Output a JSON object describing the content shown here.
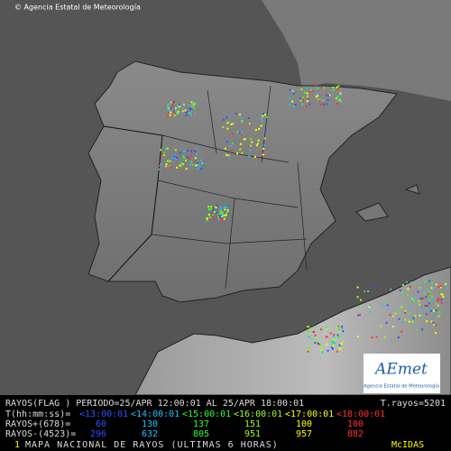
{
  "header": {
    "copyright": "© Agencia Estatal de Meteorología"
  },
  "logo": {
    "name": "AEmet",
    "subtitle": "Agencia Estatal de Meteorología"
  },
  "legend": {
    "period": "RAYOS(FLAG ) PERIODO=25/APR 12:00:01 AL 25/APR 18:00:01",
    "total": "T.rayos=5201",
    "time_label": "T(hh:mm:ss)=",
    "times": [
      "<13:00:01",
      "<14:00:01",
      "<15:00:01",
      "<16:00:01",
      "<17:00:01",
      "<18:00:01"
    ],
    "positive_label": "RAYOS+(678)=",
    "positive": [
      60,
      130,
      137,
      151,
      100,
      100
    ],
    "negative_label": "RAYOS-(4523)=",
    "negative": [
      296,
      632,
      805,
      951,
      957,
      882
    ]
  },
  "footer": {
    "index": "1",
    "title": "MAPA NACIONAL DE RAYOS (ULTIMAS 6 HORAS)",
    "system": "McIDAS"
  }
}
